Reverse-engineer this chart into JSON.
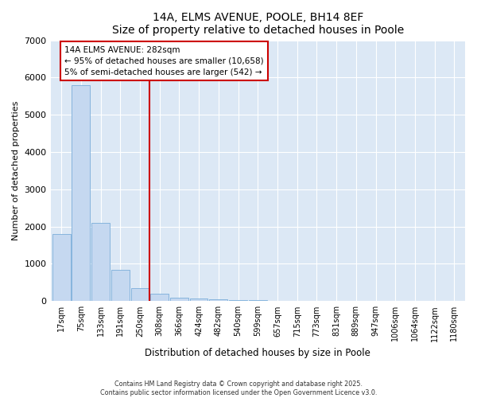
{
  "title": "14A, ELMS AVENUE, POOLE, BH14 8EF",
  "subtitle": "Size of property relative to detached houses in Poole",
  "xlabel": "Distribution of detached houses by size in Poole",
  "ylabel": "Number of detached properties",
  "bar_labels": [
    "17sqm",
    "75sqm",
    "133sqm",
    "191sqm",
    "250sqm",
    "308sqm",
    "366sqm",
    "424sqm",
    "482sqm",
    "540sqm",
    "599sqm",
    "657sqm",
    "715sqm",
    "773sqm",
    "831sqm",
    "889sqm",
    "947sqm",
    "1006sqm",
    "1064sqm",
    "1122sqm",
    "1180sqm"
  ],
  "bar_values": [
    1800,
    5800,
    2100,
    850,
    350,
    200,
    100,
    70,
    50,
    30,
    20,
    0,
    0,
    0,
    0,
    0,
    0,
    0,
    0,
    0,
    0
  ],
  "bar_color": "#c5d8f0",
  "bar_edgecolor": "#7aadda",
  "plot_bg_color": "#dce8f5",
  "fig_bg_color": "#ffffff",
  "ylim": [
    0,
    7000
  ],
  "yticks": [
    0,
    1000,
    2000,
    3000,
    4000,
    5000,
    6000,
    7000
  ],
  "red_line_x": 4.5,
  "red_line_color": "#cc0000",
  "annotation_text": "14A ELMS AVENUE: 282sqm\n← 95% of detached houses are smaller (10,658)\n5% of semi-detached houses are larger (542) →",
  "annotation_box_color": "#cc0000",
  "footer_line1": "Contains HM Land Registry data © Crown copyright and database right 2025.",
  "footer_line2": "Contains public sector information licensed under the Open Government Licence v3.0."
}
